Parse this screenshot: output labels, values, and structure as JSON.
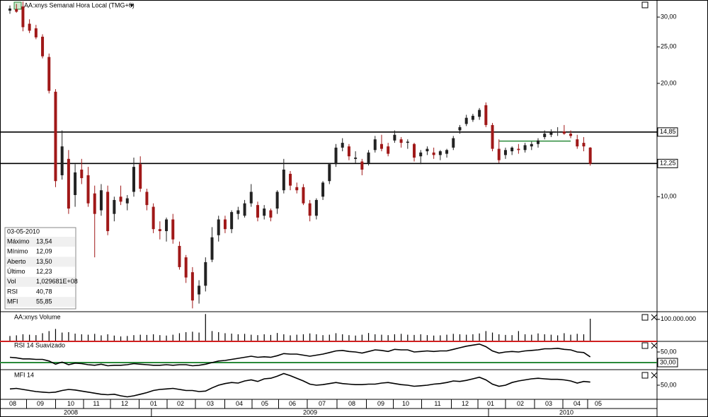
{
  "chart_data": {
    "type": "candlestick",
    "title": "AA:xnys Semanal Hora Local (TMG+0)",
    "log_scale": true,
    "ylim": [
      4.97,
      33.3
    ],
    "yticks": [
      {
        "value": 10,
        "label": "10,00"
      },
      {
        "value": 20,
        "label": "20,00"
      },
      {
        "value": 25,
        "label": "25,00"
      },
      {
        "value": 30,
        "label": "30,00"
      }
    ],
    "levels": [
      {
        "value": 14.85,
        "label": "14,85",
        "color": "#000"
      },
      {
        "value": 12.25,
        "label": "12,25",
        "color": "#000"
      }
    ],
    "trend_line": {
      "value": 14.05,
      "from": 75,
      "to": 86,
      "color": "#2a8a3a"
    },
    "up_color": "#222222",
    "down_color": "#a01818",
    "ohlc": [
      [
        31.2,
        32.2,
        30.6,
        31.6
      ],
      [
        31.5,
        32.5,
        30.8,
        31.0
      ],
      [
        32.0,
        33.0,
        27.5,
        28.2
      ],
      [
        28.8,
        29.6,
        27.2,
        27.6
      ],
      [
        28.0,
        28.6,
        26.2,
        26.5
      ],
      [
        26.6,
        27.0,
        23.3,
        23.6
      ],
      [
        23.5,
        24.0,
        18.8,
        19.1
      ],
      [
        19.0,
        19.3,
        10.6,
        11.0
      ],
      [
        11.4,
        15.0,
        11.1,
        13.6
      ],
      [
        12.6,
        13.3,
        9.0,
        9.3
      ],
      [
        10.1,
        12.2,
        9.4,
        11.6
      ],
      [
        11.8,
        12.6,
        10.8,
        11.2
      ],
      [
        11.4,
        12.0,
        9.4,
        9.6
      ],
      [
        10.2,
        10.7,
        6.9,
        9.0
      ],
      [
        9.2,
        10.8,
        8.9,
        10.4
      ],
      [
        10.3,
        10.7,
        7.9,
        8.1
      ],
      [
        9.0,
        10.0,
        8.6,
        9.8
      ],
      [
        10.0,
        10.7,
        9.5,
        9.7
      ],
      [
        9.6,
        10.1,
        9.2,
        9.9
      ],
      [
        10.3,
        12.7,
        10.0,
        12.0
      ],
      [
        12.2,
        12.8,
        10.3,
        10.5
      ],
      [
        10.3,
        10.5,
        9.2,
        9.5
      ],
      [
        9.4,
        9.6,
        8.0,
        8.2
      ],
      [
        8.2,
        8.6,
        7.7,
        8.1
      ],
      [
        8.1,
        8.8,
        7.6,
        8.7
      ],
      [
        8.7,
        9.0,
        7.5,
        7.7
      ],
      [
        7.4,
        7.6,
        6.4,
        6.5
      ],
      [
        6.9,
        7.0,
        5.9,
        6.1
      ],
      [
        6.3,
        6.5,
        5.05,
        5.3
      ],
      [
        5.5,
        6.0,
        5.2,
        5.8
      ],
      [
        5.8,
        6.9,
        5.6,
        6.7
      ],
      [
        6.8,
        8.3,
        6.7,
        7.8
      ],
      [
        7.9,
        8.9,
        7.6,
        8.7
      ],
      [
        8.7,
        8.9,
        8.0,
        8.2
      ],
      [
        8.2,
        9.2,
        8.0,
        9.1
      ],
      [
        9.0,
        9.4,
        8.7,
        9.2
      ],
      [
        8.9,
        9.8,
        8.8,
        9.6
      ],
      [
        9.6,
        10.8,
        9.4,
        10.3
      ],
      [
        9.5,
        9.7,
        8.6,
        8.8
      ],
      [
        8.9,
        9.5,
        8.7,
        9.3
      ],
      [
        9.2,
        9.3,
        8.6,
        8.8
      ],
      [
        9.3,
        10.4,
        9.0,
        10.3
      ],
      [
        10.4,
        12.6,
        10.2,
        11.8
      ],
      [
        11.5,
        11.7,
        10.4,
        10.7
      ],
      [
        10.6,
        10.9,
        10.2,
        10.4
      ],
      [
        10.6,
        10.8,
        9.5,
        9.6
      ],
      [
        9.6,
        9.8,
        8.6,
        8.9
      ],
      [
        8.9,
        9.9,
        8.7,
        9.8
      ],
      [
        10.0,
        11.0,
        9.8,
        10.9
      ],
      [
        11.0,
        12.3,
        10.8,
        12.2
      ],
      [
        12.2,
        13.8,
        12.0,
        13.5
      ],
      [
        13.5,
        14.3,
        13.2,
        13.9
      ],
      [
        13.6,
        13.8,
        12.5,
        12.8
      ],
      [
        12.6,
        13.2,
        12.3,
        12.7
      ],
      [
        12.4,
        12.6,
        11.4,
        11.8
      ],
      [
        12.3,
        13.3,
        12.1,
        13.1
      ],
      [
        13.3,
        14.5,
        13.1,
        14.2
      ],
      [
        13.8,
        14.6,
        13.2,
        13.4
      ],
      [
        13.6,
        13.9,
        12.8,
        13.0
      ],
      [
        14.1,
        15.0,
        13.9,
        14.6
      ],
      [
        14.2,
        14.4,
        13.5,
        13.9
      ],
      [
        13.9,
        14.2,
        13.4,
        14.0
      ],
      [
        13.8,
        13.9,
        12.4,
        12.7
      ],
      [
        12.8,
        13.3,
        12.2,
        13.1
      ],
      [
        13.2,
        13.6,
        12.9,
        13.4
      ],
      [
        13.1,
        13.5,
        12.6,
        12.9
      ],
      [
        12.9,
        13.3,
        12.5,
        13.2
      ],
      [
        13.0,
        13.4,
        12.7,
        13.3
      ],
      [
        13.5,
        14.5,
        13.3,
        14.3
      ],
      [
        15.0,
        15.5,
        14.7,
        15.3
      ],
      [
        15.6,
        16.5,
        15.4,
        16.2
      ],
      [
        16.0,
        16.6,
        15.8,
        16.4
      ],
      [
        16.3,
        17.2,
        16.0,
        17.0
      ],
      [
        17.5,
        17.8,
        15.3,
        15.5
      ],
      [
        15.5,
        15.7,
        13.2,
        13.4
      ],
      [
        13.4,
        14.2,
        12.3,
        12.5
      ],
      [
        12.9,
        13.5,
        12.6,
        13.3
      ],
      [
        13.2,
        13.6,
        12.9,
        13.5
      ],
      [
        13.4,
        13.8,
        13.0,
        13.3
      ],
      [
        13.3,
        13.9,
        13.1,
        13.7
      ],
      [
        13.6,
        14.0,
        13.3,
        13.8
      ],
      [
        13.8,
        14.3,
        13.5,
        14.1
      ],
      [
        14.4,
        15.0,
        14.2,
        14.7
      ],
      [
        14.6,
        15.1,
        14.4,
        14.8
      ],
      [
        14.8,
        15.3,
        14.5,
        14.9
      ],
      [
        14.9,
        15.5,
        14.6,
        14.7
      ],
      [
        14.7,
        15.0,
        14.3,
        14.5
      ],
      [
        14.2,
        14.6,
        13.4,
        13.6
      ],
      [
        13.9,
        14.4,
        13.2,
        13.6
      ],
      [
        13.5,
        13.54,
        12.09,
        12.23
      ]
    ],
    "xticks": [
      {
        "value": 0.43,
        "label": "08"
      },
      {
        "value": 4.67,
        "label": "09"
      },
      {
        "value": 9.34,
        "label": "10"
      },
      {
        "value": 13.25,
        "label": "11"
      },
      {
        "value": 17.59,
        "label": "12"
      },
      {
        "value": 22.04,
        "label": "01"
      },
      {
        "value": 26.17,
        "label": "02"
      },
      {
        "value": 30.73,
        "label": "03"
      },
      {
        "value": 35.18,
        "label": "04"
      },
      {
        "value": 39.09,
        "label": "05"
      },
      {
        "value": 43.32,
        "label": "06"
      },
      {
        "value": 47.88,
        "label": "07"
      },
      {
        "value": 52.44,
        "label": "08"
      },
      {
        "value": 56.9,
        "label": "09"
      },
      {
        "value": 60.7,
        "label": "10"
      },
      {
        "value": 65.58,
        "label": "11"
      },
      {
        "value": 69.82,
        "label": "12"
      },
      {
        "value": 73.73,
        "label": "01"
      },
      {
        "value": 78.28,
        "label": "02"
      },
      {
        "value": 82.63,
        "label": "03"
      },
      {
        "value": 86.97,
        "label": "04"
      },
      {
        "value": 90.23,
        "label": "05"
      }
    ],
    "years": [
      {
        "value": 9.34,
        "label": "2008"
      },
      {
        "value": 46.04,
        "label": "2009"
      },
      {
        "value": 85.34,
        "label": "2010"
      }
    ],
    "info": {
      "date": "03-05-2010",
      "rows": [
        [
          "Máximo",
          "13,54"
        ],
        [
          "Mínimo",
          "12,09"
        ],
        [
          "Aberto",
          "13,50"
        ],
        [
          "Último",
          "12,23"
        ],
        [
          "Vol",
          "1,029681E+08"
        ],
        [
          "RSI",
          "40,78"
        ],
        [
          "MFI",
          "55,85"
        ]
      ]
    },
    "volume": {
      "name": "AA:xnys Volume",
      "color": "#000",
      "ylim": [
        0,
        126000000
      ],
      "yticks": [
        {
          "value": 100000000,
          "label": "100.000.000"
        }
      ],
      "values": [
        22000000,
        25000000,
        30000000,
        28000000,
        26000000,
        35000000,
        45000000,
        55000000,
        38000000,
        40000000,
        33000000,
        30000000,
        28000000,
        32000000,
        25000000,
        30000000,
        24000000,
        20000000,
        22000000,
        26000000,
        28000000,
        27000000,
        30000000,
        26000000,
        24000000,
        28000000,
        35000000,
        40000000,
        42000000,
        38000000,
        125000000,
        45000000,
        40000000,
        35000000,
        33000000,
        30000000,
        32000000,
        28000000,
        26000000,
        30000000,
        27000000,
        36000000,
        30000000,
        25000000,
        28000000,
        30000000,
        34000000,
        30000000,
        26000000,
        28000000,
        35000000,
        30000000,
        26000000,
        24000000,
        28000000,
        36000000,
        30000000,
        28000000,
        26000000,
        30000000,
        32000000,
        28000000,
        27000000,
        30000000,
        26000000,
        24000000,
        25000000,
        28000000,
        32000000,
        30000000,
        28000000,
        30000000,
        34000000,
        45000000,
        38000000,
        30000000,
        27000000,
        26000000,
        45000000,
        30000000,
        28000000,
        34000000,
        30000000,
        28000000,
        25000000,
        35000000,
        28000000,
        32000000,
        30000000,
        102968100
      ]
    },
    "rsi": {
      "name": "RSI 14 Suavizado",
      "color": "#000",
      "ylim": [
        18,
        70
      ],
      "yticks": [
        {
          "value": 50,
          "label": "50,00"
        }
      ],
      "levels": [
        {
          "value": 70,
          "color": "#d02020"
        },
        {
          "value": 30,
          "label": "30,00",
          "color": "#2a8a3a"
        }
      ],
      "values": [
        40,
        39,
        37,
        37,
        36,
        36,
        33,
        27,
        31,
        26,
        29,
        28,
        26,
        25,
        27,
        24,
        25,
        25,
        26,
        28,
        27,
        26,
        25,
        25,
        26,
        25,
        26,
        26,
        24,
        25,
        27,
        30,
        33,
        34,
        36,
        38,
        40,
        42,
        40,
        41,
        40,
        43,
        47,
        46,
        46,
        44,
        42,
        44,
        46,
        49,
        52,
        53,
        51,
        50,
        48,
        51,
        54,
        53,
        51,
        55,
        54,
        54,
        50,
        51,
        52,
        51,
        52,
        52,
        55,
        58,
        61,
        63,
        65,
        60,
        52,
        48,
        50,
        51,
        50,
        52,
        53,
        54,
        56,
        56,
        57,
        55,
        54,
        50,
        49,
        40.78
      ]
    },
    "mfi": {
      "name": "MFI 14",
      "color": "#000",
      "ylim": [
        23.35,
        76.65
      ],
      "yticks": [
        {
          "value": 50,
          "label": "50,00"
        }
      ],
      "values": [
        43,
        44,
        42,
        40,
        38,
        37,
        36,
        37,
        40,
        42,
        41,
        39,
        37,
        35,
        33,
        32,
        33,
        30,
        28,
        30,
        33,
        36,
        40,
        42,
        43,
        44,
        42,
        40,
        40,
        38,
        39,
        45,
        50,
        53,
        55,
        54,
        58,
        60,
        57,
        62,
        63,
        67,
        72,
        68,
        63,
        58,
        52,
        50,
        51,
        53,
        55,
        53,
        52,
        51,
        51,
        52,
        52,
        54,
        55,
        53,
        51,
        50,
        48,
        49,
        50,
        52,
        53,
        55,
        58,
        57,
        59,
        62,
        65,
        60,
        52,
        48,
        50,
        55,
        58,
        60,
        62,
        63,
        62,
        61,
        61,
        60,
        58,
        54,
        57,
        55.85
      ]
    }
  }
}
